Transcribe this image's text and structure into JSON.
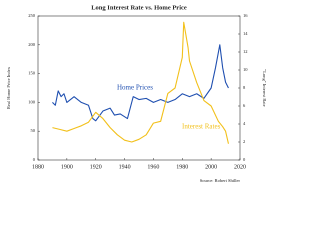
{
  "chart_data": {
    "type": "line",
    "title": "Long Interest Rate vs. Home Price",
    "ylabel": "Real Home Price Index",
    "y2label": "\"Long\" Interest Rate",
    "source": "Source: Robert Shiller",
    "annotations": [
      "Home Prices",
      "Interest Rates"
    ],
    "xlim": [
      1880,
      2020
    ],
    "xticks": [
      1880,
      1900,
      1920,
      1940,
      1960,
      1980,
      2000,
      2020
    ],
    "ylim": [
      0,
      250
    ],
    "yticks": [
      0,
      50,
      100,
      150,
      200,
      250
    ],
    "y2lim": [
      0,
      16
    ],
    "y2ticks": [
      0,
      2,
      4,
      6,
      8,
      10,
      12,
      14,
      16
    ],
    "grid": false,
    "series": [
      {
        "name": "Home Prices",
        "color": "#1f4fb0",
        "x": [
          1890,
          1892,
          1894,
          1896,
          1898,
          1900,
          1905,
          1910,
          1915,
          1918,
          1920,
          1925,
          1930,
          1933,
          1937,
          1942,
          1946,
          1950,
          1955,
          1960,
          1965,
          1970,
          1975,
          1980,
          1985,
          1990,
          1995,
          2000,
          2003,
          2006,
          2008,
          2010,
          2012
        ],
        "values": [
          100,
          95,
          120,
          110,
          115,
          100,
          110,
          100,
          95,
          72,
          68,
          85,
          90,
          78,
          80,
          72,
          110,
          105,
          107,
          100,
          105,
          100,
          105,
          115,
          110,
          115,
          107,
          125,
          160,
          200,
          160,
          135,
          125
        ]
      },
      {
        "name": "Interest Rates",
        "color": "#f2c01a",
        "axis": "y2",
        "x": [
          1890,
          1895,
          1900,
          1905,
          1910,
          1915,
          1920,
          1925,
          1930,
          1935,
          1940,
          1945,
          1950,
          1955,
          1960,
          1965,
          1970,
          1975,
          1980,
          1981,
          1984,
          1985,
          1990,
          1995,
          2000,
          2005,
          2008,
          2010,
          2012
        ],
        "values": [
          3.6,
          3.4,
          3.2,
          3.5,
          3.8,
          4.2,
          5.3,
          4.6,
          3.6,
          2.8,
          2.2,
          2.0,
          2.3,
          2.8,
          4.1,
          4.3,
          7.4,
          8.0,
          11.4,
          15.3,
          12.5,
          11,
          8.6,
          6.6,
          6.0,
          4.3,
          3.7,
          3.2,
          1.8
        ]
      }
    ]
  }
}
